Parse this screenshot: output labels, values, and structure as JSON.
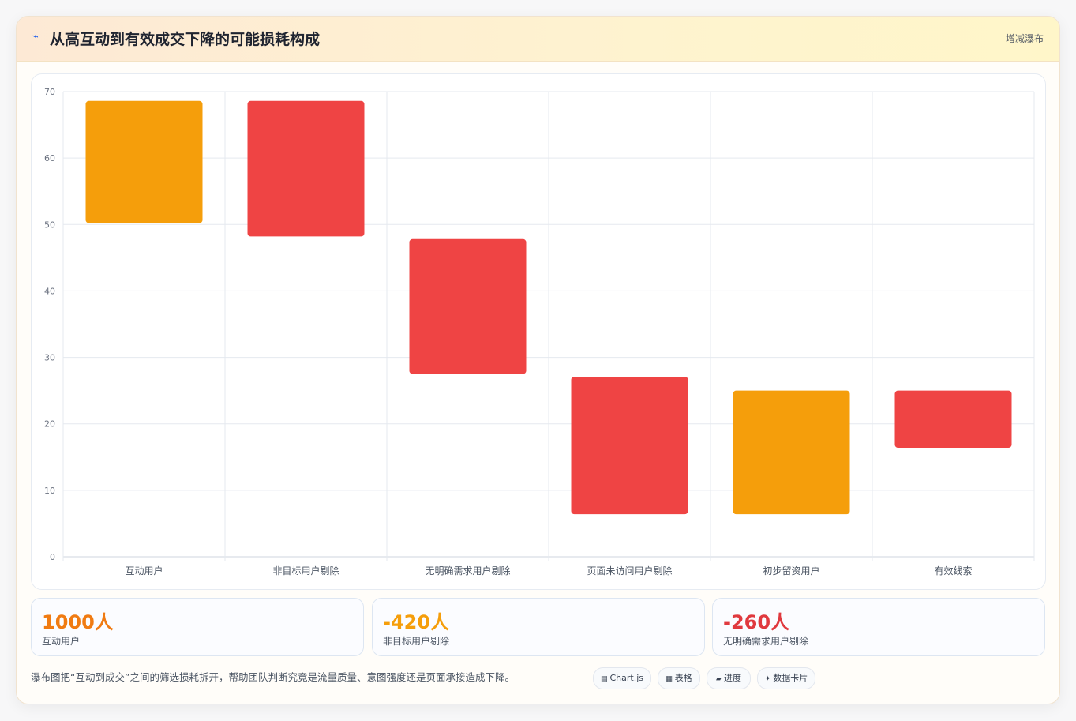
{
  "header": {
    "icon": "⌁",
    "title": "从高互动到有效成交下降的可能损耗构成",
    "tag": "增减瀑布"
  },
  "chart_data": {
    "type": "bar",
    "subtype": "floating-waterfall",
    "categories": [
      "互动用户",
      "非目标用户剔除",
      "无明确需求用户剔除",
      "页面未访问用户剔除",
      "初步留资用户",
      "有效线索"
    ],
    "bars": [
      {
        "low": 50.2,
        "high": 68.6,
        "color": "#f59e0b"
      },
      {
        "low": 48.2,
        "high": 68.6,
        "color": "#ef4444"
      },
      {
        "low": 27.5,
        "high": 47.8,
        "color": "#ef4444"
      },
      {
        "low": 6.4,
        "high": 27.1,
        "color": "#ef4444"
      },
      {
        "low": 6.4,
        "high": 25.0,
        "color": "#f59e0b"
      },
      {
        "low": 16.4,
        "high": 25.0,
        "color": "#ef4444"
      }
    ],
    "ylim": [
      0,
      70
    ],
    "yticks": [
      0,
      10,
      20,
      30,
      40,
      50,
      60,
      70
    ],
    "grid": true,
    "legend": "none"
  },
  "stats": [
    {
      "value": "1000人",
      "label": "互动用户",
      "color": "#f07b12"
    },
    {
      "value": "-420人",
      "label": "非目标用户剔除",
      "color": "#f59e0b"
    },
    {
      "value": "-260人",
      "label": "无明确需求用户剔除",
      "color": "#e0393e"
    }
  ],
  "footer": {
    "note": "瀑布图把“互动到成交”之间的筛选损耗拆开，帮助团队判断究竟是流量质量、意图强度还是页面承接造成下降。"
  },
  "chips": [
    {
      "icon": "▤",
      "label": "Chart.js",
      "icon_name": "chart-icon"
    },
    {
      "icon": "▦",
      "label": "表格",
      "icon_name": "table-icon"
    },
    {
      "icon": "▰",
      "label": "进度",
      "icon_name": "progress-icon"
    },
    {
      "icon": "✦",
      "label": "数据卡片",
      "icon_name": "sparkle-icon"
    }
  ]
}
